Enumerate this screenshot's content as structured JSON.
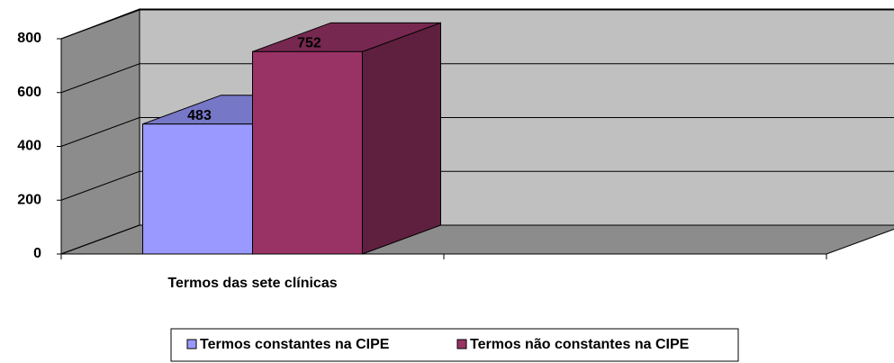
{
  "chart_data": {
    "type": "bar3d",
    "categories": [
      "Termos das sete clínicas",
      null
    ],
    "series": [
      {
        "name": "Termos constantes na CIPE",
        "color": "#9999ff",
        "values": [
          483,
          null
        ]
      },
      {
        "name": "Termos não constantes na CIPE",
        "color": "#993366",
        "values": [
          752,
          null
        ]
      }
    ],
    "ylim": [
      0,
      800
    ],
    "yticks": [
      0,
      200,
      400,
      600,
      800
    ],
    "grid": true,
    "legend": "bottom"
  }
}
